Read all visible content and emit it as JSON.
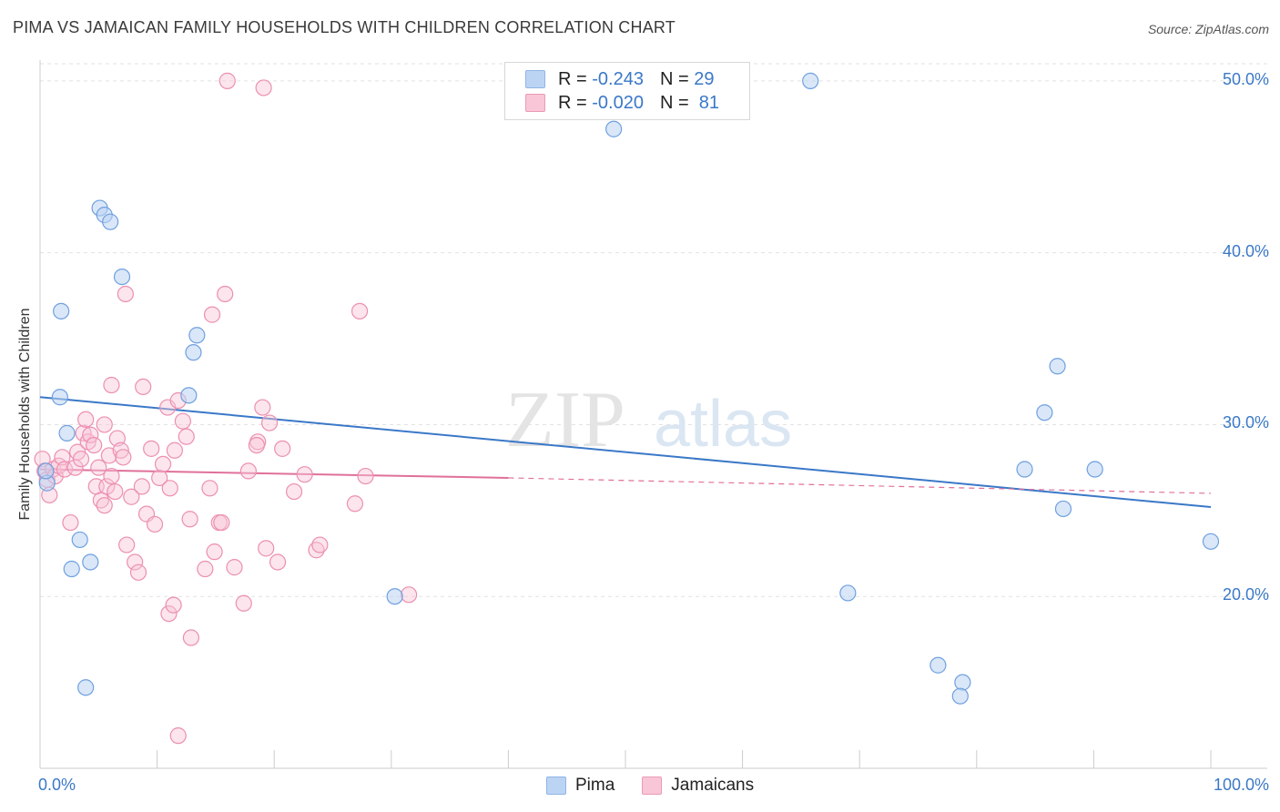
{
  "chart_data": {
    "type": "scatter",
    "title": "PIMA VS JAMAICAN FAMILY HOUSEHOLDS WITH CHILDREN CORRELATION CHART",
    "source": "Source: ZipAtlas.com",
    "xlabel": "",
    "ylabel": "Family Households with Children",
    "xlim": [
      0,
      100
    ],
    "ylim": [
      10,
      51
    ],
    "x_tick_labels": [
      "0.0%",
      "100.0%"
    ],
    "y_ticks": [
      20,
      30,
      40,
      50
    ],
    "y_tick_labels": [
      "20.0%",
      "30.0%",
      "40.0%",
      "50.0%"
    ],
    "watermark": "ZIPatlas",
    "legend": [
      {
        "series": "Pima",
        "r_label": "R =",
        "r_value": "-0.243",
        "n_label": "N =",
        "n_value": "29"
      },
      {
        "series": "Jamaicans",
        "r_label": "R =",
        "r_value": "-0.020",
        "n_label": "N =",
        "n_value": "81"
      }
    ],
    "series": [
      {
        "name": "Pima",
        "color": "#6fa0e0",
        "fill": "#bcd4f3",
        "trend": {
          "x0": 0,
          "y0": 31.6,
          "x1": 100,
          "y1": 25.2
        },
        "points": [
          [
            1.7,
            31.6
          ],
          [
            1.8,
            36.6
          ],
          [
            2.3,
            29.5
          ],
          [
            3.4,
            23.3
          ],
          [
            2.7,
            21.6
          ],
          [
            4.3,
            22.0
          ],
          [
            3.9,
            14.7
          ],
          [
            5.1,
            42.6
          ],
          [
            5.5,
            42.2
          ],
          [
            6.0,
            41.8
          ],
          [
            7.0,
            38.6
          ],
          [
            13.4,
            35.2
          ],
          [
            13.1,
            34.2
          ],
          [
            12.7,
            31.7
          ],
          [
            0.6,
            26.6
          ],
          [
            0.5,
            27.3
          ],
          [
            30.3,
            20.0
          ],
          [
            49.0,
            47.2
          ],
          [
            65.8,
            50.0
          ],
          [
            69.0,
            20.2
          ],
          [
            76.7,
            16.0
          ],
          [
            78.8,
            15.0
          ],
          [
            78.6,
            14.2
          ],
          [
            84.1,
            27.4
          ],
          [
            85.8,
            30.7
          ],
          [
            86.9,
            33.4
          ],
          [
            87.4,
            25.1
          ],
          [
            90.1,
            27.4
          ],
          [
            100.0,
            23.2
          ]
        ]
      },
      {
        "name": "Jamaicans",
        "color": "#ec8fb0",
        "fill": "#f8c6d6",
        "trend": {
          "x0": 0,
          "y0": 27.4,
          "x1": 40,
          "y1": 26.9
        },
        "trend_dashed": {
          "x0": 40,
          "y0": 26.9,
          "x1": 100,
          "y1": 26.0
        },
        "points": [
          [
            0.2,
            28.0
          ],
          [
            0.4,
            27.3
          ],
          [
            0.6,
            26.8
          ],
          [
            0.8,
            25.9
          ],
          [
            1.1,
            27.4
          ],
          [
            1.3,
            27.0
          ],
          [
            1.6,
            27.6
          ],
          [
            1.9,
            28.1
          ],
          [
            2.1,
            27.4
          ],
          [
            2.6,
            24.3
          ],
          [
            3.0,
            27.5
          ],
          [
            3.2,
            28.4
          ],
          [
            3.5,
            28.0
          ],
          [
            3.7,
            29.5
          ],
          [
            3.9,
            30.3
          ],
          [
            4.1,
            29.0
          ],
          [
            4.3,
            29.4
          ],
          [
            4.6,
            28.8
          ],
          [
            5.0,
            27.5
          ],
          [
            4.8,
            26.4
          ],
          [
            5.2,
            25.6
          ],
          [
            5.5,
            25.3
          ],
          [
            5.7,
            26.4
          ],
          [
            5.9,
            28.2
          ],
          [
            6.1,
            27.0
          ],
          [
            6.4,
            26.1
          ],
          [
            6.6,
            29.2
          ],
          [
            6.9,
            28.5
          ],
          [
            7.1,
            28.1
          ],
          [
            7.4,
            23.0
          ],
          [
            7.8,
            25.8
          ],
          [
            8.1,
            22.0
          ],
          [
            8.4,
            21.4
          ],
          [
            8.7,
            26.4
          ],
          [
            8.8,
            32.2
          ],
          [
            9.1,
            24.8
          ],
          [
            9.5,
            28.6
          ],
          [
            9.8,
            24.2
          ],
          [
            10.2,
            26.9
          ],
          [
            10.5,
            27.7
          ],
          [
            10.9,
            31.0
          ],
          [
            11.1,
            26.3
          ],
          [
            11.5,
            28.5
          ],
          [
            11.8,
            31.4
          ],
          [
            12.2,
            30.2
          ],
          [
            12.5,
            29.3
          ],
          [
            12.8,
            24.5
          ],
          [
            11.0,
            19.0
          ],
          [
            11.4,
            19.5
          ],
          [
            12.9,
            17.6
          ],
          [
            11.8,
            11.9
          ],
          [
            7.3,
            37.6
          ],
          [
            6.1,
            32.3
          ],
          [
            5.5,
            30.0
          ],
          [
            14.7,
            36.4
          ],
          [
            15.8,
            37.6
          ],
          [
            14.5,
            26.3
          ],
          [
            14.9,
            22.6
          ],
          [
            15.3,
            24.3
          ],
          [
            16.6,
            21.7
          ],
          [
            17.4,
            19.6
          ],
          [
            17.8,
            27.3
          ],
          [
            18.6,
            29.0
          ],
          [
            19.0,
            31.0
          ],
          [
            19.6,
            30.1
          ],
          [
            19.3,
            22.8
          ],
          [
            20.3,
            22.0
          ],
          [
            21.7,
            26.1
          ],
          [
            22.6,
            27.1
          ],
          [
            23.6,
            22.7
          ],
          [
            23.9,
            23.0
          ],
          [
            26.9,
            25.4
          ],
          [
            27.3,
            36.6
          ],
          [
            27.8,
            27.0
          ],
          [
            31.5,
            20.1
          ],
          [
            16.0,
            50.0
          ],
          [
            19.1,
            49.6
          ],
          [
            14.1,
            21.6
          ],
          [
            15.5,
            24.3
          ],
          [
            20.7,
            28.6
          ],
          [
            18.5,
            28.8
          ]
        ]
      }
    ]
  }
}
